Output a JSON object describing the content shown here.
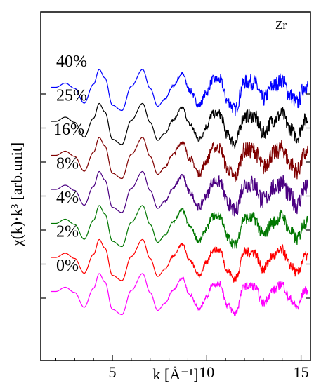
{
  "chart_data": {
    "type": "line",
    "title": "",
    "annotation": "Zr",
    "xlabel": "k [Å⁻¹]",
    "ylabel": "χ(k)·k³ [arb.unit]",
    "xlim": [
      1.2,
      15.5
    ],
    "x_ticks": [
      5,
      10,
      15
    ],
    "grid": false,
    "x_oscillation": [
      2.0,
      2.5,
      3.0,
      3.5,
      4.0,
      4.3,
      4.6,
      5.0,
      5.5,
      6.0,
      6.6,
      7.0,
      7.4,
      7.8,
      8.2,
      8.7,
      9.1,
      9.6,
      10.0,
      10.3,
      10.7,
      11.1,
      11.5,
      12.0,
      12.5,
      13.0,
      13.5,
      14.0,
      14.4,
      14.8,
      15.2
    ],
    "y_oscillation": [
      0.15,
      0.35,
      0.1,
      -0.6,
      0.3,
      1.0,
      0.6,
      -0.7,
      -0.95,
      0.2,
      1.0,
      0.1,
      -0.75,
      -0.4,
      0.2,
      0.8,
      0.0,
      -0.7,
      -0.1,
      0.5,
      0.5,
      -0.5,
      -0.9,
      0.4,
      0.4,
      -0.4,
      0.2,
      0.5,
      -0.2,
      -0.6,
      0.2
    ],
    "series": [
      {
        "label": "40%",
        "color": "#0000ff",
        "offset": 6,
        "amplitude": 1.0,
        "noise": 0.55
      },
      {
        "label": "25%",
        "color": "#000000",
        "offset": 5,
        "amplitude": 1.0,
        "noise": 0.5
      },
      {
        "label": "16%",
        "color": "#800000",
        "offset": 4,
        "amplitude": 1.0,
        "noise": 0.6
      },
      {
        "label": "8%",
        "color": "#4b0082",
        "offset": 3,
        "amplitude": 1.0,
        "noise": 0.65
      },
      {
        "label": "4%",
        "color": "#007700",
        "offset": 2,
        "amplitude": 1.0,
        "noise": 0.45
      },
      {
        "label": "2%",
        "color": "#ff0000",
        "offset": 1,
        "amplitude": 1.0,
        "noise": 0.35
      },
      {
        "label": "0%",
        "color": "#ff00ff",
        "offset": 0,
        "amplitude": 1.0,
        "noise": 0.3
      }
    ]
  }
}
